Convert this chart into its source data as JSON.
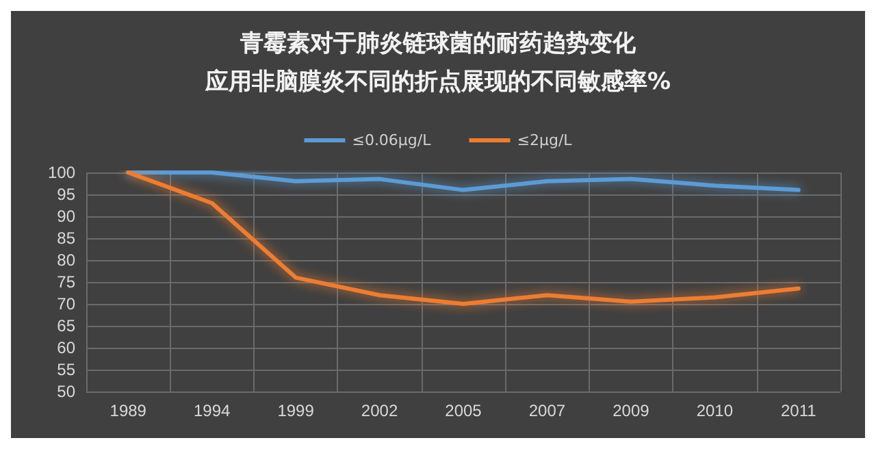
{
  "chart_data": {
    "type": "line",
    "title": "青霉素对于肺炎链球菌的耐药趋势变化",
    "subtitle": "应用非脑膜炎不同的折点展现的不同敏感率%",
    "categories": [
      "1989",
      "1994",
      "1999",
      "2002",
      "2005",
      "2007",
      "2009",
      "2010",
      "2011"
    ],
    "series": [
      {
        "name": "≤0.06μg/L",
        "color": "#5b9bd5",
        "values": [
          100,
          100,
          98,
          98.5,
          96,
          98,
          98.5,
          97,
          96
        ]
      },
      {
        "name": "≤2μg/L",
        "color": "#ed7d31",
        "values": [
          100,
          93,
          76,
          72,
          70,
          72,
          70.5,
          71.5,
          73.5
        ]
      }
    ],
    "ylim": [
      50,
      100
    ],
    "yticks": [
      50,
      55,
      60,
      65,
      70,
      75,
      80,
      85,
      90,
      95,
      100
    ],
    "grid": true,
    "legend": "top",
    "marker": "none",
    "line_style": "solid"
  }
}
